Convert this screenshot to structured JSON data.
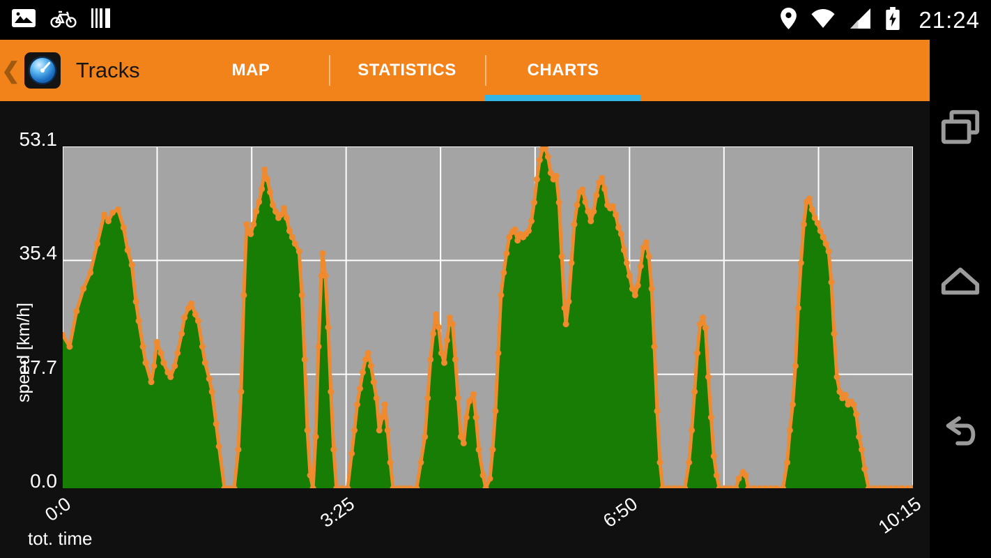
{
  "status_bar": {
    "time": "21:24",
    "icons_left": [
      "gallery-icon",
      "bike-icon",
      "stripes-icon"
    ],
    "icons_right": [
      "location-icon",
      "wifi-icon",
      "signal-icon",
      "battery-icon"
    ]
  },
  "action_bar": {
    "back_caret": "❮",
    "title": "Tracks",
    "tabs": [
      {
        "label": "MAP",
        "active": false
      },
      {
        "label": "STATISTICS",
        "active": false
      },
      {
        "label": "CHARTS",
        "active": true
      }
    ],
    "colors": {
      "bar": "#F2831B",
      "active_underline": "#33B5E5"
    }
  },
  "chart": {
    "ylabel": "speed [km/h]",
    "xlabel": "tot. time",
    "y_ticks": [
      "53.1",
      "35.4",
      "17.7",
      "0.0"
    ],
    "x_ticks": [
      "0:0",
      "3:25",
      "6:50",
      "10:15"
    ]
  },
  "chart_data": {
    "type": "area",
    "title": "",
    "xlabel": "tot. time",
    "ylabel": "speed [km/h]",
    "x_unit": "minutes",
    "xlim": [
      0,
      615
    ],
    "ylim": [
      0,
      53.1
    ],
    "y_gridlines": [
      0,
      17.7,
      35.4,
      53.1
    ],
    "x_gridlines": [
      0,
      68.3,
      136.7,
      205,
      273.3,
      341.7,
      410,
      478.3,
      546.7,
      615
    ],
    "x_tick_labels": [
      {
        "t": 0,
        "label": "0:0"
      },
      {
        "t": 205,
        "label": "3:25"
      },
      {
        "t": 410,
        "label": "6:50"
      },
      {
        "t": 615,
        "label": "10:15"
      }
    ],
    "plot_bg": "#A4A4A4",
    "grid_color": "#FFFFFF",
    "fill_color": "#177D04",
    "line_color": "#EF8A2E",
    "series": [
      {
        "name": "speed",
        "points": [
          [
            0,
            23.8
          ],
          [
            5,
            22
          ],
          [
            10,
            27.5
          ],
          [
            15,
            31
          ],
          [
            20,
            33.5
          ],
          [
            25,
            38
          ],
          [
            30,
            42.5
          ],
          [
            33,
            41.5
          ],
          [
            36,
            42.8
          ],
          [
            40,
            43.3
          ],
          [
            44,
            40.5
          ],
          [
            47,
            37
          ],
          [
            50,
            34.7
          ],
          [
            53,
            29
          ],
          [
            55,
            26
          ],
          [
            58,
            22
          ],
          [
            60,
            19.5
          ],
          [
            64,
            16.5
          ],
          [
            66,
            19
          ],
          [
            68,
            22.7
          ],
          [
            71,
            21
          ],
          [
            73,
            19.5
          ],
          [
            76,
            18
          ],
          [
            78,
            17.3
          ],
          [
            81,
            19
          ],
          [
            83,
            21
          ],
          [
            86,
            24
          ],
          [
            88,
            26.5
          ],
          [
            91,
            28
          ],
          [
            93,
            28.7
          ],
          [
            96,
            27
          ],
          [
            98,
            26
          ],
          [
            101,
            22
          ],
          [
            103,
            19.5
          ],
          [
            106,
            17
          ],
          [
            108,
            15
          ],
          [
            111,
            10
          ],
          [
            113,
            6.5
          ],
          [
            117,
            0
          ],
          [
            120,
            0
          ],
          [
            124,
            0
          ],
          [
            127,
            6
          ],
          [
            129,
            15
          ],
          [
            131,
            30
          ],
          [
            133,
            41
          ],
          [
            136,
            39.5
          ],
          [
            138,
            41
          ],
          [
            140,
            43
          ],
          [
            142,
            44.5
          ],
          [
            144,
            46.5
          ],
          [
            146,
            49.5
          ],
          [
            148,
            48
          ],
          [
            150,
            46
          ],
          [
            152,
            44
          ],
          [
            154,
            43
          ],
          [
            156,
            42
          ],
          [
            158,
            42.5
          ],
          [
            160,
            43.5
          ],
          [
            162,
            42
          ],
          [
            164,
            40
          ],
          [
            166,
            39
          ],
          [
            168,
            38
          ],
          [
            171,
            36.8
          ],
          [
            173,
            30
          ],
          [
            175,
            20
          ],
          [
            177,
            9
          ],
          [
            179,
            2
          ],
          [
            181,
            0
          ],
          [
            183,
            8
          ],
          [
            185,
            22
          ],
          [
            187,
            33
          ],
          [
            188,
            36.5
          ],
          [
            190,
            33
          ],
          [
            192,
            25
          ],
          [
            194,
            15
          ],
          [
            196,
            6
          ],
          [
            198,
            0
          ],
          [
            202,
            0
          ],
          [
            206,
            0
          ],
          [
            209,
            5.4
          ],
          [
            211,
            9
          ],
          [
            213,
            13
          ],
          [
            215,
            15.5
          ],
          [
            217,
            18
          ],
          [
            219,
            20
          ],
          [
            221,
            21
          ],
          [
            223,
            19
          ],
          [
            225,
            16.5
          ],
          [
            227,
            14
          ],
          [
            229,
            9
          ],
          [
            231,
            11
          ],
          [
            233,
            13
          ],
          [
            235,
            9
          ],
          [
            237,
            4
          ],
          [
            239,
            0
          ],
          [
            243,
            0
          ],
          [
            247,
            0
          ],
          [
            251,
            0
          ],
          [
            256,
            0
          ],
          [
            259,
            4
          ],
          [
            262,
            8
          ],
          [
            264,
            14
          ],
          [
            266,
            20
          ],
          [
            268,
            24
          ],
          [
            270,
            27
          ],
          [
            272,
            25
          ],
          [
            274,
            21
          ],
          [
            276,
            19.5
          ],
          [
            278,
            23
          ],
          [
            280,
            26.5
          ],
          [
            282,
            25.5
          ],
          [
            284,
            20
          ],
          [
            286,
            14
          ],
          [
            288,
            8
          ],
          [
            290,
            7
          ],
          [
            292,
            11
          ],
          [
            294,
            13.5
          ],
          [
            297,
            14.6
          ],
          [
            299,
            11
          ],
          [
            301,
            6
          ],
          [
            304,
            2
          ],
          [
            306,
            0
          ],
          [
            309,
            1.5
          ],
          [
            311,
            6
          ],
          [
            313,
            12
          ],
          [
            315,
            21
          ],
          [
            317,
            30
          ],
          [
            319,
            33.5
          ],
          [
            321,
            36.5
          ],
          [
            323,
            39
          ],
          [
            325,
            39.8
          ],
          [
            327,
            40.2
          ],
          [
            329,
            38.5
          ],
          [
            331,
            39.5
          ],
          [
            333,
            39
          ],
          [
            335,
            39.5
          ],
          [
            337,
            40
          ],
          [
            339,
            41.5
          ],
          [
            341,
            44.4
          ],
          [
            343,
            48
          ],
          [
            345,
            51
          ],
          [
            347,
            52.7
          ],
          [
            349,
            52.9
          ],
          [
            351,
            51.5
          ],
          [
            353,
            49
          ],
          [
            355,
            48
          ],
          [
            357,
            48.5
          ],
          [
            359,
            44.4
          ],
          [
            361,
            36
          ],
          [
            363,
            28
          ],
          [
            364,
            25.5
          ],
          [
            366,
            29
          ],
          [
            368,
            35
          ],
          [
            370,
            41
          ],
          [
            372,
            44
          ],
          [
            374,
            46
          ],
          [
            376,
            46.4
          ],
          [
            378,
            44.5
          ],
          [
            380,
            43
          ],
          [
            382,
            41.5
          ],
          [
            384,
            43
          ],
          [
            386,
            45.5
          ],
          [
            388,
            47.5
          ],
          [
            390,
            48.2
          ],
          [
            392,
            46.5
          ],
          [
            394,
            44
          ],
          [
            396,
            43.5
          ],
          [
            398,
            43.8
          ],
          [
            400,
            42.5
          ],
          [
            402,
            40.5
          ],
          [
            404,
            39.5
          ],
          [
            406,
            37
          ],
          [
            408,
            35
          ],
          [
            410,
            33
          ],
          [
            412,
            31
          ],
          [
            414,
            30
          ],
          [
            416,
            31.5
          ],
          [
            418,
            34.5
          ],
          [
            420,
            37.4
          ],
          [
            422,
            38.2
          ],
          [
            424,
            36
          ],
          [
            426,
            31
          ],
          [
            428,
            22
          ],
          [
            430,
            12
          ],
          [
            432,
            4
          ],
          [
            434,
            0
          ],
          [
            438,
            0
          ],
          [
            442,
            0
          ],
          [
            446,
            0
          ],
          [
            450,
            0
          ],
          [
            453,
            4
          ],
          [
            455,
            9
          ],
          [
            457,
            15
          ],
          [
            459,
            21
          ],
          [
            461,
            25.5
          ],
          [
            463,
            26.5
          ],
          [
            465,
            24.9
          ],
          [
            467,
            17.3
          ],
          [
            469,
            11
          ],
          [
            471,
            5
          ],
          [
            473,
            2
          ],
          [
            475,
            0
          ],
          [
            479,
            0
          ],
          [
            483,
            0
          ],
          [
            487,
            0
          ],
          [
            489,
            1.5
          ],
          [
            492,
            2.5
          ],
          [
            494,
            2
          ],
          [
            496,
            0
          ],
          [
            500,
            0
          ],
          [
            504,
            0
          ],
          [
            508,
            0
          ],
          [
            512,
            0
          ],
          [
            516,
            0
          ],
          [
            521,
            0
          ],
          [
            524,
            4
          ],
          [
            526,
            9
          ],
          [
            528,
            13
          ],
          [
            530,
            19
          ],
          [
            532,
            28
          ],
          [
            534,
            35
          ],
          [
            536,
            41
          ],
          [
            538,
            44.5
          ],
          [
            540,
            45
          ],
          [
            542,
            43.3
          ],
          [
            544,
            42
          ],
          [
            546,
            41.2
          ],
          [
            548,
            40
          ],
          [
            550,
            39
          ],
          [
            552,
            38
          ],
          [
            554,
            36.8
          ],
          [
            556,
            32
          ],
          [
            558,
            24
          ],
          [
            560,
            17.3
          ],
          [
            562,
            15
          ],
          [
            564,
            14
          ],
          [
            566,
            14.5
          ],
          [
            568,
            13
          ],
          [
            570,
            13.5
          ],
          [
            572,
            13
          ],
          [
            574,
            11.5
          ],
          [
            576,
            8
          ],
          [
            578,
            6
          ],
          [
            580,
            3
          ],
          [
            583,
            0
          ],
          [
            587,
            0
          ],
          [
            591,
            0
          ],
          [
            595,
            0
          ],
          [
            599,
            0
          ],
          [
            603,
            0
          ],
          [
            607,
            0
          ],
          [
            611,
            0
          ],
          [
            615,
            0
          ]
        ]
      }
    ]
  },
  "nav_bar": {
    "icons": [
      "recents-icon",
      "home-icon",
      "back-icon"
    ]
  }
}
